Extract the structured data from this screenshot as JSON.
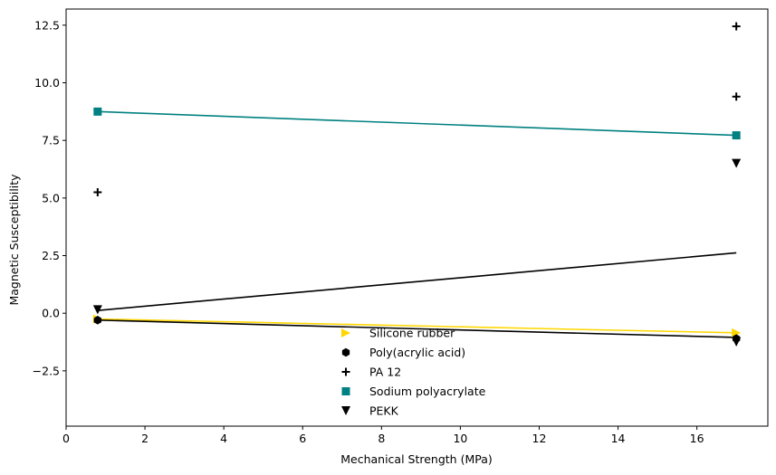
{
  "chart_data": {
    "type": "scatter",
    "xlabel": "Mechanical Strength (MPa)",
    "ylabel": "Magnetic Susceptibility",
    "xlim": [
      0,
      17.8
    ],
    "ylim": [
      -4.9,
      13.2
    ],
    "xticks": [
      0,
      2,
      4,
      6,
      8,
      10,
      12,
      14,
      16
    ],
    "yticks": [
      -2.5,
      0.0,
      2.5,
      5.0,
      7.5,
      10.0,
      12.5
    ],
    "xtick_labels": [
      "0",
      "2",
      "4",
      "6",
      "8",
      "10",
      "12",
      "14",
      "16"
    ],
    "ytick_labels": [
      "−2.5",
      "0.0",
      "2.5",
      "5.0",
      "7.5",
      "10.0",
      "12.5"
    ],
    "grid": false,
    "legend_position": "lower-center",
    "series": [
      {
        "name": "Silicone rubber",
        "marker": "triangle-right",
        "color": "#FFD700",
        "points": [
          [
            0.8,
            -0.25
          ],
          [
            17.0,
            -0.85
          ]
        ],
        "fit_line": [
          [
            0.8,
            -0.25
          ],
          [
            17.0,
            -0.85
          ]
        ]
      },
      {
        "name": "Poly(acrylic acid)",
        "marker": "hexagon",
        "color": "#000000",
        "points": [
          [
            0.8,
            -0.3
          ],
          [
            17.0,
            -1.1
          ]
        ],
        "fit_line": [
          [
            0.8,
            -0.3
          ],
          [
            17.0,
            -1.05
          ]
        ]
      },
      {
        "name": "PA 12",
        "marker": "plus",
        "color": "#000000",
        "points": [
          [
            0.8,
            5.25
          ],
          [
            17.0,
            9.4
          ],
          [
            17.0,
            12.45
          ]
        ],
        "fit_line": null
      },
      {
        "name": "Sodium polyacrylate",
        "marker": "square",
        "color": "#008080",
        "points": [
          [
            0.8,
            8.75
          ],
          [
            17.0,
            7.72
          ]
        ],
        "fit_line": [
          [
            0.8,
            8.75
          ],
          [
            17.0,
            7.72
          ]
        ]
      },
      {
        "name": "PEKK",
        "marker": "triangle-down",
        "color": "#000000",
        "points": [
          [
            0.8,
            0.15
          ],
          [
            17.0,
            6.5
          ],
          [
            17.0,
            -1.25
          ]
        ],
        "fit_line": [
          [
            0.8,
            0.12
          ],
          [
            17.0,
            2.62
          ]
        ]
      }
    ]
  }
}
